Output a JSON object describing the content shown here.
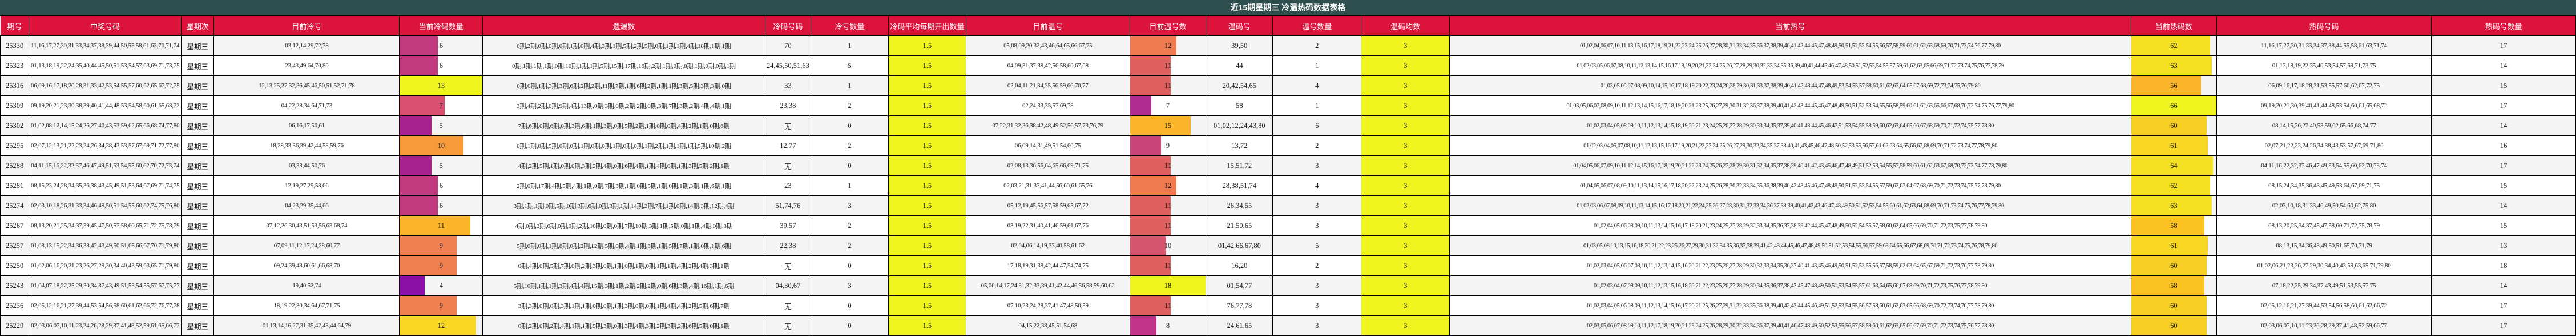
{
  "title": "近15期星期三 冷温热码数据表格",
  "columns": [
    "期号",
    "中奖号码",
    "星期次",
    "目前冷号",
    "当前冷码数量",
    "遗漏数",
    "冷码号码",
    "冷号数量",
    "冷码平均每期开出数量",
    "目前温号",
    "目前温号数",
    "温码号",
    "温号数量",
    "温码均数",
    "当前热号",
    "当前热码数",
    "热码号码",
    "热码号数量"
  ],
  "rows": [
    {
      "issue": "25330",
      "numbers": "11,16,17,27,30,31,33,34,37,38,39,44,50,55,58,61,63,70,71,74",
      "weekday": "星期三",
      "cold": "03,12,14,29,72,78",
      "cold_count": "6",
      "cold_count_color": "#c23b80",
      "cold_count_pct": 46,
      "miss": "0期,2期,0期,0期,0期,1期,0期,4期,3期,1期,5期,2期,5期,0期,1期,1期,4期,18期,1期,1期",
      "cold_hit": "70",
      "cold_hit_count": "1",
      "cold_hit_color": "#6a0dad",
      "cold_hit_pct": 20,
      "cold_avg": "1.5",
      "warm": "05,08,09,20,32,43,46,64,65,66,67,75",
      "warm_count": "12",
      "warm_count_color": "#f07b50",
      "warm_count_pct": 61,
      "warm_hit": "39,50",
      "warm_hit_count": "2",
      "warm_hit_color": "#a0169e",
      "warm_hit_pct": 33,
      "warm_avg": "3",
      "hot": "01,02,04,06,07,10,11,13,15,16,17,18,19,21,22,23,24,25,26,27,28,30,31,33,34,35,36,37,38,39,40,41,42,44,45,47,48,49,50,51,52,53,54,55,56,57,58,59,60,61,62,63,68,69,70,71,73,74,76,77,79,80",
      "hot_count": "62",
      "hot_count_color": "#f5e022",
      "hot_count_pct": 93,
      "hot_hit": "11,16,17,27,30,31,33,34,37,38,44,55,58,61,63,71,74",
      "hot_hit_count": "17",
      "hot_hit_color": "#f5e022",
      "hot_hit_pct": 93
    },
    {
      "issue": "25323",
      "numbers": "01,13,18,19,22,24,35,40,44,45,50,51,53,54,57,63,69,71,73,75",
      "weekday": "星期三",
      "cold": "23,43,49,64,70,80",
      "cold_count": "6",
      "cold_count_color": "#c23b80",
      "cold_count_pct": 46,
      "miss": "0期,1期,1期,1期,0期,10期,1期,1期,5期,15期,17期,16期,2期,1期,0期,8期,1期,0期,0期,1期",
      "cold_hit": "24,45,50,51,63",
      "cold_hit_count": "5",
      "cold_hit_color": "#f0f520",
      "cold_hit_pct": 100,
      "cold_avg": "1.5",
      "warm": "04,09,31,37,38,42,56,58,60,67,68",
      "warm_count": "11",
      "warm_count_color": "#e06060",
      "warm_count_pct": 54,
      "warm_hit": "44",
      "warm_hit_count": "1",
      "warm_hit_color": "#5a00a8",
      "warm_hit_pct": 17,
      "warm_avg": "3",
      "hot": "01,02,03,05,06,07,08,10,11,12,13,14,15,16,17,18,19,20,21,22,24,25,26,27,28,29,30,32,33,34,35,36,39,40,41,44,45,46,47,48,50,51,52,53,54,55,57,59,61,62,63,65,66,69,71,72,73,74,75,76,77,78,79",
      "hot_count": "63",
      "hot_count_color": "#f5e022",
      "hot_count_pct": 95,
      "hot_hit": "01,13,18,19,22,35,40,53,54,57,69,71,73,75",
      "hot_hit_count": "14",
      "hot_hit_color": "#f7a03a",
      "hot_hit_pct": 77
    },
    {
      "issue": "25316",
      "numbers": "06,09,16,17,18,20,28,31,33,42,53,54,55,57,60,62,65,67,72,75",
      "weekday": "星期三",
      "cold": "12,13,25,27,32,36,45,46,50,51,52,71,78",
      "cold_count": "13",
      "cold_count_color": "#f0f520",
      "cold_count_pct": 100,
      "miss": "0期,0期,1期,3期,3期,6期,2期,2期,11期,7期,1期,6期,2期,1期,1期,3期,5期,3期,3期,0期",
      "cold_hit": "33",
      "cold_hit_count": "1",
      "cold_hit_color": "#6a0dad",
      "cold_hit_pct": 20,
      "cold_avg": "1.5",
      "warm": "02,04,11,21,34,35,56,59,66,70,77",
      "warm_count": "11",
      "warm_count_color": "#e06060",
      "warm_count_pct": 54,
      "warm_hit": "20,42,54,65",
      "warm_hit_count": "4",
      "warm_hit_color": "#f07b50",
      "warm_hit_pct": 67,
      "warm_avg": "3",
      "hot": "01,03,05,06,07,08,09,10,14,15,16,17,18,19,20,22,23,24,26,28,29,30,31,33,37,38,39,40,41,42,43,44,47,48,49,53,54,55,57,58,60,61,62,63,64,65,67,68,69,72,73,74,75,76,79,80",
      "hot_count": "56",
      "hot_count_color": "#fbb52a",
      "hot_count_pct": 82,
      "hot_hit": "06,09,16,17,18,28,31,53,55,57,60,62,67,72,75",
      "hot_hit_count": "15",
      "hot_hit_color": "#fbb52a",
      "hot_hit_pct": 82
    },
    {
      "issue": "25309",
      "numbers": "09,19,20,21,23,30,38,39,40,41,44,48,53,54,58,60,61,65,68,72",
      "weekday": "星期三",
      "cold": "04,22,28,34,64,71,73",
      "cold_count": "7",
      "cold_count_color": "#d95070",
      "cold_count_pct": 54,
      "miss": "3期,4期,2期,0期,9期,4期,13期,0期,3期,0期,2期,2期,0期,3期,7期,3期,2期,4期,4期,1期",
      "cold_hit": "23,38",
      "cold_hit_count": "2",
      "cold_hit_color": "#b02a90",
      "cold_hit_pct": 40,
      "cold_avg": "1.5",
      "warm": "02,24,33,35,57,69,78",
      "warm_count": "7",
      "warm_count_color": "#b02a90",
      "warm_count_pct": 28,
      "warm_hit": "58",
      "warm_hit_count": "1",
      "warm_hit_color": "#5a00a8",
      "warm_hit_pct": 17,
      "warm_avg": "3",
      "hot": "01,03,05,06,07,08,09,10,11,12,13,14,15,16,17,18,19,20,21,23,25,26,27,29,30,31,32,36,37,38,39,40,41,42,43,44,45,46,47,48,49,50,51,52,53,54,55,56,58,59,60,61,62,63,65,66,67,68,70,72,74,75,76,77,79,80",
      "hot_count": "66",
      "hot_count_color": "#f0f520",
      "hot_count_pct": 100,
      "hot_hit": "09,19,20,21,30,39,40,41,44,48,53,54,60,61,65,68,72",
      "hot_hit_count": "17",
      "hot_hit_color": "#f5e022",
      "hot_hit_pct": 93
    },
    {
      "issue": "25302",
      "numbers": "01,02,08,12,14,15,24,26,27,40,43,53,59,62,65,66,68,74,77,80",
      "weekday": "星期三",
      "cold": "06,16,17,50,61",
      "cold_count": "5",
      "cold_count_color": "#a8228e",
      "cold_count_pct": 38,
      "miss": "7期,6期,0期,6期,0期,3期,6期,1期,3期,0期,5期,2期,1期,0期,0期,4期,2期,1期,0期,6期",
      "cold_hit": "无",
      "cold_hit_count": "0",
      "cold_hit_color": "",
      "cold_hit_pct": 0,
      "cold_avg": "1.5",
      "warm": "07,22,31,32,36,38,42,48,49,52,56,57,73,76,79",
      "warm_count": "15",
      "warm_count_color": "#fbb52a",
      "warm_count_pct": 80,
      "warm_hit": "01,02,12,24,43,80",
      "warm_hit_count": "6",
      "warm_hit_color": "#f0f520",
      "warm_hit_pct": 100,
      "warm_avg": "3",
      "hot": "01,02,03,04,05,08,09,10,11,12,13,14,15,18,19,20,21,23,24,25,26,27,28,29,30,33,34,35,37,39,40,41,43,44,45,46,47,51,53,54,55,58,59,60,62,63,64,65,66,67,68,69,70,71,72,74,75,77,78,80",
      "hot_count": "60",
      "hot_count_color": "#f8cf24",
      "hot_count_pct": 89,
      "hot_hit": "08,14,15,26,27,40,53,59,62,65,66,68,74,77",
      "hot_hit_count": "14",
      "hot_hit_color": "#f7a03a",
      "hot_hit_pct": 77
    },
    {
      "issue": "25295",
      "numbers": "02,07,12,13,21,22,23,24,26,34,38,43,53,57,67,69,71,72,77,80",
      "weekday": "星期三",
      "cold": "18,28,33,36,39,42,44,58,59,76",
      "cold_count": "10",
      "cold_count_color": "#f79a3a",
      "cold_count_pct": 77,
      "miss": "0期,1期,8期,5期,0期,0期,1期,0期,0期,1期,0期,0期,1期,2期,1期,1期,1期,5期,10期,2期",
      "cold_hit": "12,77",
      "cold_hit_count": "2",
      "cold_hit_color": "#b02a90",
      "cold_hit_pct": 40,
      "cold_avg": "1.5",
      "warm": "06,09,14,31,49,51,54,60,75",
      "warm_count": "9",
      "warm_count_color": "#c8457a",
      "warm_count_pct": 41,
      "warm_hit": "13,72",
      "warm_hit_count": "2",
      "warm_hit_color": "#a0169e",
      "warm_hit_pct": 33,
      "warm_avg": "3",
      "hot": "01,02,03,04,05,07,08,10,11,12,13,15,16,17,19,20,21,22,23,24,25,26,27,29,30,32,34,35,37,38,40,41,43,45,46,47,48,50,52,53,55,56,57,61,62,63,64,65,66,67,68,69,70,71,72,73,74,77,78,79,80",
      "hot_count": "61",
      "hot_count_color": "#f8d824",
      "hot_count_pct": 90,
      "hot_hit": "02,07,21,22,23,24,26,34,38,43,53,57,67,69,71,80",
      "hot_hit_count": "16",
      "hot_hit_color": "#fcca22",
      "hot_hit_pct": 88
    },
    {
      "issue": "25288",
      "numbers": "04,11,15,16,22,32,37,46,47,49,51,53,54,55,60,62,70,72,73,74",
      "weekday": "星期三",
      "cold": "03,33,44,50,76",
      "cold_count": "5",
      "cold_count_color": "#a8228e",
      "cold_count_pct": 38,
      "miss": "4期,2期,5期,1期,0期,0期,3期,2期,4期,0期,6期,4期,1期,4期,0期,1期,3期,5期,2期,1期",
      "cold_hit": "无",
      "cold_hit_count": "0",
      "cold_hit_color": "",
      "cold_hit_pct": 0,
      "cold_avg": "1.5",
      "warm": "02,08,13,36,56,64,65,66,69,71,75",
      "warm_count": "11",
      "warm_count_color": "#e06060",
      "warm_count_pct": 54,
      "warm_hit": "15,51,72",
      "warm_hit_count": "3",
      "warm_hit_color": "#cc4478",
      "warm_hit_pct": 50,
      "warm_avg": "3",
      "hot": "01,04,05,06,07,09,10,11,12,14,15,16,17,18,19,20,21,22,23,24,25,26,27,28,29,30,31,32,34,35,37,38,39,40,41,42,43,45,46,47,48,49,51,52,53,54,55,57,58,59,60,61,62,63,67,68,70,72,73,74,77,78,79,80",
      "hot_count": "64",
      "hot_count_color": "#f5e022",
      "hot_count_pct": 96,
      "hot_hit": "04,11,16,22,32,37,46,47,49,53,54,55,60,62,70,73,74",
      "hot_hit_count": "17",
      "hot_hit_color": "#f5e022",
      "hot_hit_pct": 93
    },
    {
      "issue": "25281",
      "numbers": "08,15,23,24,28,34,35,36,38,43,45,49,51,53,64,67,69,71,74,75",
      "weekday": "星期三",
      "cold": "12,19,27,29,58,66",
      "cold_count": "6",
      "cold_count_color": "#c23b80",
      "cold_count_pct": 46,
      "miss": "2期,0期,17期,4期,5期,4期,1期,0期,7期,3期,1期,0期,5期,1期,0期,1期,3期,1期,6期,1期",
      "cold_hit": "23",
      "cold_hit_count": "1",
      "cold_hit_color": "#6a0dad",
      "cold_hit_pct": 20,
      "cold_avg": "1.5",
      "warm": "02,03,21,31,37,41,44,56,60,61,65,76",
      "warm_count": "12",
      "warm_count_color": "#f07b50",
      "warm_count_pct": 61,
      "warm_hit": "28,38,51,74",
      "warm_hit_count": "4",
      "warm_hit_color": "#f07b50",
      "warm_hit_pct": 67,
      "warm_avg": "3",
      "hot": "01,04,05,06,07,08,09,10,11,13,14,15,16,17,18,20,22,23,24,25,26,28,30,32,33,34,35,36,38,39,40,42,43,45,46,47,48,49,50,51,52,53,54,55,57,59,62,63,64,67,68,69,70,71,72,73,74,75,77,78,79,80",
      "hot_count": "62",
      "hot_count_color": "#f5e022",
      "hot_count_pct": 93,
      "hot_hit": "08,15,24,34,35,36,43,45,49,53,64,67,69,71,75",
      "hot_hit_count": "15",
      "hot_hit_color": "#fbb52a",
      "hot_hit_pct": 82
    },
    {
      "issue": "25274",
      "numbers": "02,03,10,18,26,31,33,34,46,49,50,51,54,55,60,62,74,75,76,80",
      "weekday": "星期三",
      "cold": "04,23,29,35,44,66",
      "cold_count": "6",
      "cold_count_color": "#c23b80",
      "cold_count_pct": 46,
      "miss": "3期,1期,1期,0期,5期,0期,3期,6期,0期,3期,1期,14期,2期,7期,1期,0期,14期,3期,12期,4期",
      "cold_hit": "51,74,76",
      "cold_hit_count": "3",
      "cold_hit_color": "#e06060",
      "cold_hit_pct": 60,
      "cold_avg": "1.5",
      "warm": "05,12,19,45,56,57,58,59,65,67,72",
      "warm_count": "11",
      "warm_count_color": "#e06060",
      "warm_count_pct": 54,
      "warm_hit": "26,34,55",
      "warm_hit_count": "3",
      "warm_hit_color": "#cc4478",
      "warm_hit_pct": 50,
      "warm_avg": "3",
      "hot": "01,02,03,06,07,08,09,10,11,13,14,15,16,17,18,20,21,22,24,25,26,27,28,30,31,32,33,34,36,37,38,39,40,41,42,43,46,47,48,49,50,51,52,53,54,55,60,61,62,63,64,68,69,70,71,73,74,75,76,77,78,79,80",
      "hot_count": "63",
      "hot_count_color": "#f5e022",
      "hot_count_pct": 95,
      "hot_hit": "02,03,10,18,31,33,46,49,50,54,60,62,75,80",
      "hot_hit_count": "14",
      "hot_hit_color": "#f7a03a",
      "hot_hit_pct": 77
    },
    {
      "issue": "25267",
      "numbers": "08,13,20,21,25,34,37,39,45,47,50,57,58,60,65,71,72,75,78,79",
      "weekday": "星期三",
      "cold": "07,12,26,30,43,51,53,56,63,68,74",
      "cold_count": "11",
      "cold_count_color": "#fbb52a",
      "cold_count_pct": 85,
      "miss": "4期,0期,2期,6期,0期,0期,2期,10期,0期,0期,7期,10期,3期,1期,5期,0期,1期,4期,0期,3期",
      "cold_hit": "39,57",
      "cold_hit_count": "2",
      "cold_hit_color": "#b02a90",
      "cold_hit_pct": 40,
      "cold_avg": "1.5",
      "warm": "03,19,22,31,40,41,46,59,61,67,76",
      "warm_count": "11",
      "warm_count_color": "#e06060",
      "warm_count_pct": 54,
      "warm_hit": "21,50,65",
      "warm_hit_count": "3",
      "warm_hit_color": "#cc4478",
      "warm_hit_pct": 50,
      "warm_avg": "3",
      "hot": "01,02,04,05,06,08,09,10,11,13,14,15,16,17,18,20,21,23,24,25,27,28,29,32,33,34,35,36,37,38,39,42,44,45,47,48,49,50,52,54,55,57,58,60,62,64,65,66,69,70,71,72,73,75,77,78,79,80",
      "hot_count": "58",
      "hot_count_color": "#fcc222",
      "hot_count_pct": 86,
      "hot_hit": "08,13,20,25,34,37,45,47,58,60,71,72,75,78,79",
      "hot_hit_count": "15",
      "hot_hit_color": "#fbb52a",
      "hot_hit_pct": 82
    },
    {
      "issue": "25257",
      "numbers": "01,08,13,15,22,34,36,38,42,43,49,50,51,65,66,67,70,71,79,80",
      "weekday": "星期三",
      "cold": "07,09,11,12,17,24,28,60,77",
      "cold_count": "9",
      "cold_count_color": "#f08050",
      "cold_count_pct": 69,
      "miss": "5期,0期,0期,1期,8期,0期,2期,12期,5期,0期,4期,1期,3期,1期,5期,7期,1期,0期,1期,6期",
      "cold_hit": "22,38",
      "cold_hit_count": "2",
      "cold_hit_color": "#b02a90",
      "cold_hit_pct": 40,
      "cold_avg": "1.5",
      "warm": "02,04,06,14,19,33,40,58,61,62",
      "warm_count": "10",
      "warm_count_color": "#d65670",
      "warm_count_pct": 48,
      "warm_hit": "01,42,66,67,80",
      "warm_hit_count": "5",
      "warm_hit_color": "#fbb52a",
      "warm_hit_pct": 83,
      "warm_avg": "3",
      "hot": "01,03,05,08,10,13,15,16,18,20,21,22,23,25,26,27,29,30,31,32,34,35,36,37,38,39,41,42,43,44,45,46,47,48,49,50,51,52,53,54,55,56,57,59,63,64,65,66,67,68,69,70,71,72,73,74,75,76,78,79,80",
      "hot_count": "61",
      "hot_count_color": "#f8d824",
      "hot_count_pct": 90,
      "hot_hit": "08,13,15,34,36,43,49,50,51,65,70,71,79",
      "hot_hit_count": "13",
      "hot_hit_color": "#f5894a",
      "hot_hit_pct": 71
    },
    {
      "issue": "25250",
      "numbers": "01,02,06,16,20,21,23,26,27,29,30,34,40,43,59,63,65,71,79,80",
      "weekday": "星期三",
      "cold": "09,24,39,48,60,61,66,68,70",
      "cold_count": "9",
      "cold_count_color": "#f08050",
      "cold_count_pct": 69,
      "miss": "0期,4期,0期,5期,7期,0期,2期,3期,0期,1期,0期,1期,0期,1期,1期,4期,2期,4期,3期,1期",
      "cold_hit": "无",
      "cold_hit_count": "0",
      "cold_hit_color": "",
      "cold_hit_pct": 0,
      "cold_avg": "1.5",
      "warm": "17,18,19,31,38,42,44,47,54,74,75",
      "warm_count": "11",
      "warm_count_color": "#e06060",
      "warm_count_pct": 54,
      "warm_hit": "16,20",
      "warm_hit_count": "2",
      "warm_hit_color": "#a0169e",
      "warm_hit_pct": 33,
      "warm_avg": "3",
      "hot": "01,02,03,04,05,06,07,08,10,11,12,13,14,15,16,20,21,22,23,25,26,27,28,29,30,32,33,34,35,36,37,40,41,43,45,46,49,50,51,52,53,55,56,57,58,59,62,63,64,65,67,69,71,72,73,76,77,78,79,80",
      "hot_count": "60",
      "hot_count_color": "#f8cf24",
      "hot_count_pct": 89,
      "hot_hit": "01,02,06,21,23,26,27,29,30,34,40,43,59,63,65,71,79,80",
      "hot_hit_count": "18",
      "hot_hit_color": "#f0f520",
      "hot_hit_pct": 100
    },
    {
      "issue": "25243",
      "numbers": "01,04,07,18,22,25,29,30,34,37,43,49,51,53,54,55,57,67,75,77",
      "weekday": "星期三",
      "cold": "19,40,52,74",
      "cold_count": "4",
      "cold_count_color": "#8a10a8",
      "cold_count_pct": 30,
      "miss": "5期,10期,1期,1期,3期,4期,4期,15期,3期,1期,2期,2期,2期,0期,6期,3期,4期,16期,1期,6期",
      "cold_hit": "04,30,67",
      "cold_hit_count": "3",
      "cold_hit_color": "#e06060",
      "cold_hit_pct": 60,
      "cold_avg": "1.5",
      "warm": "05,06,14,17,24,31,32,33,39,41,42,44,46,56,58,59,60,62",
      "warm_count": "18",
      "warm_count_color": "#f0f520",
      "warm_count_pct": 100,
      "warm_hit": "01,54,77",
      "warm_hit_count": "3",
      "warm_hit_color": "#cc4478",
      "warm_hit_pct": 50,
      "warm_avg": "3",
      "hot": "01,02,03,04,07,08,09,10,11,12,13,15,16,18,20,21,22,23,25,26,27,28,29,30,34,35,36,37,38,43,45,47,48,49,50,51,53,54,55,57,61,63,64,65,66,67,68,69,70,71,72,73,75,76,77,78,79,80",
      "hot_count": "58",
      "hot_count_color": "#fcc222",
      "hot_count_pct": 86,
      "hot_hit": "07,18,22,25,29,34,37,43,49,51,53,55,57,75",
      "hot_hit_count": "14",
      "hot_hit_color": "#f7a03a",
      "hot_hit_pct": 77
    },
    {
      "issue": "25236",
      "numbers": "02,05,12,16,21,27,39,44,53,54,56,58,60,61,62,66,72,76,77,78",
      "weekday": "星期三",
      "cold": "18,19,22,30,34,64,67,71,75",
      "cold_count": "9",
      "cold_count_color": "#f08050",
      "cold_count_pct": 69,
      "miss": "3期,3期,0期,0期,3期,1期,1期,0期,0期,1期,3期,0期,0期,1期,4期,4期,2期,5期,6期,7期",
      "cold_hit": "无",
      "cold_hit_count": "0",
      "cold_hit_color": "",
      "cold_hit_pct": 0,
      "cold_avg": "1.5",
      "warm": "07,10,23,24,28,37,41,47,48,50,59",
      "warm_count": "11",
      "warm_count_color": "#e06060",
      "warm_count_pct": 54,
      "warm_hit": "76,77,78",
      "warm_hit_count": "3",
      "warm_hit_color": "#cc4478",
      "warm_hit_pct": 50,
      "warm_avg": "3",
      "hot": "01,02,03,04,05,06,08,09,11,12,13,14,15,16,17,20,21,25,26,27,29,31,32,33,35,36,38,39,40,42,43,44,45,46,49,51,52,53,54,55,56,57,58,60,61,62,63,65,66,68,69,70,72,73,74,76,77,78,79,80",
      "hot_count": "60",
      "hot_count_color": "#f8cf24",
      "hot_count_pct": 89,
      "hot_hit": "02,05,12,16,21,27,39,44,53,54,56,58,60,61,62,66,72",
      "hot_hit_count": "17",
      "hot_hit_color": "#f5e022",
      "hot_hit_pct": 93
    },
    {
      "issue": "25229",
      "numbers": "02,03,06,07,10,11,23,24,26,28,29,37,41,48,52,59,61,65,66,77",
      "weekday": "星期三",
      "cold": "01,13,14,16,27,31,35,42,43,44,64,79",
      "cold_count": "12",
      "cold_count_color": "#f8d824",
      "cold_count_pct": 92,
      "miss": "0期,2期,0期,2期,4期,1期,1期,5期,3期,0期,3期,4期,3期,2期,3期,2期,6期,5期,0期,1期",
      "cold_hit": "无",
      "cold_hit_count": "0",
      "cold_hit_color": "",
      "cold_hit_pct": 0,
      "cold_avg": "1.5",
      "warm": "04,15,22,38,45,51,54,68",
      "warm_count": "8",
      "warm_count_color": "#c0348a",
      "warm_count_pct": 35,
      "warm_hit": "24,61,65",
      "warm_hit_count": "3",
      "warm_hit_color": "#cc4478",
      "warm_hit_pct": 50,
      "warm_avg": "3",
      "hot": "02,03,05,06,07,08,09,10,11,12,17,18,19,20,21,23,24,25,26,28,29,30,32,33,34,36,37,39,40,41,46,47,48,49,50,52,53,55,56,57,58,59,60,61,62,63,65,66,67,69,70,71,72,73,74,75,76,77,78,80",
      "hot_count": "60",
      "hot_count_color": "#f8cf24",
      "hot_count_pct": 89,
      "hot_hit": "02,03,06,07,10,11,23,26,28,29,37,41,48,52,59,66,77",
      "hot_hit_count": "17",
      "hot_hit_color": "#f5e022",
      "hot_hit_pct": 93
    }
  ]
}
